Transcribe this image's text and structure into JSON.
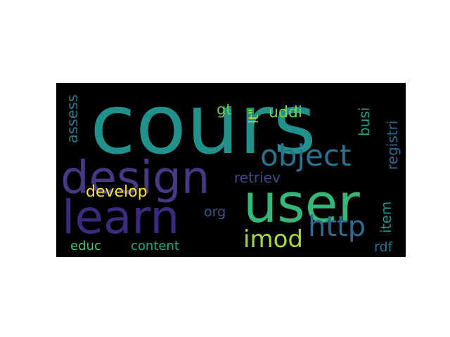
{
  "words": [
    {
      "text": "cours",
      "color": "#21918c",
      "orientation": "horizontal"
    },
    {
      "text": "user",
      "color": "#35b779",
      "orientation": "horizontal"
    },
    {
      "text": "design",
      "color": "#443983",
      "orientation": "horizontal"
    },
    {
      "text": "learn",
      "color": "#3b2a7d",
      "orientation": "horizontal"
    },
    {
      "text": "object",
      "color": "#2c728e",
      "orientation": "horizontal"
    },
    {
      "text": "http",
      "color": "#31688e",
      "orientation": "horizontal"
    },
    {
      "text": "imod",
      "color": "#a5db36",
      "orientation": "horizontal"
    },
    {
      "text": "develop",
      "color": "#fde725",
      "orientation": "horizontal"
    },
    {
      "text": "retriev",
      "color": "#3e4a89",
      "orientation": "horizontal"
    },
    {
      "text": "uddi",
      "color": "#7ad151",
      "orientation": "horizontal"
    },
    {
      "text": "gt",
      "color": "#6ece58",
      "orientation": "horizontal"
    },
    {
      "text": "lt\"",
      "color": "#b5de2b",
      "orientation": "vertical"
    },
    {
      "text": "busi",
      "color": "#1fa187",
      "orientation": "vertical"
    },
    {
      "text": "registri",
      "color": "#31688e",
      "orientation": "vertical"
    },
    {
      "text": "assess",
      "color": "#2a788e",
      "orientation": "vertical"
    },
    {
      "text": "item",
      "color": "#21918c",
      "orientation": "vertical"
    },
    {
      "text": "org",
      "color": "#38588c",
      "orientation": "horizontal"
    },
    {
      "text": "educ",
      "color": "#4ac16d",
      "orientation": "horizontal"
    },
    {
      "text": "content",
      "color": "#22a884",
      "orientation": "horizontal"
    },
    {
      "text": "rdf",
      "color": "#2c728e",
      "orientation": "horizontal"
    }
  ]
}
